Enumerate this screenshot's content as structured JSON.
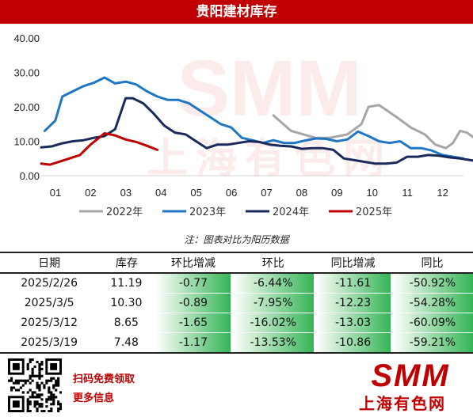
{
  "title": "贵阳建材库存",
  "watermark": {
    "logo": "SMM",
    "cn": "上海有色网"
  },
  "note": "注：图表对比为阳历数据",
  "chart_data": {
    "type": "line",
    "x": [
      "01",
      "02",
      "03",
      "04",
      "05",
      "06",
      "07",
      "08",
      "09",
      "10",
      "11",
      "12"
    ],
    "ylim": [
      0,
      40
    ],
    "yticks": [
      "0.00",
      "10.00",
      "20.00",
      "30.00",
      "40.00"
    ],
    "grid": false,
    "legend": "bottom",
    "series": [
      {
        "name": "2022年",
        "color": "#a6a6a6",
        "values": [
          [
            6.6,
            17.5
          ],
          [
            7.1,
            13
          ],
          [
            7.8,
            11
          ],
          [
            8.2,
            11
          ],
          [
            8.7,
            12
          ],
          [
            9.1,
            15
          ],
          [
            9.3,
            20
          ],
          [
            9.6,
            20.5
          ],
          [
            10.1,
            17
          ],
          [
            10.5,
            14
          ],
          [
            10.9,
            12
          ],
          [
            11.2,
            9
          ],
          [
            11.5,
            8
          ],
          [
            11.7,
            9.5
          ],
          [
            11.9,
            13
          ],
          [
            12.1,
            12.5
          ],
          [
            12.3,
            11
          ],
          [
            12.5,
            13
          ]
        ]
      },
      {
        "name": "2023年",
        "color": "#1f77c4",
        "values": [
          [
            0.1,
            13
          ],
          [
            0.4,
            16
          ],
          [
            0.6,
            23
          ],
          [
            0.9,
            24.5
          ],
          [
            1.2,
            26
          ],
          [
            1.5,
            27
          ],
          [
            1.8,
            28.5
          ],
          [
            2.1,
            26.8
          ],
          [
            2.4,
            27.3
          ],
          [
            2.7,
            26.5
          ],
          [
            3.0,
            24.5
          ],
          [
            3.3,
            23
          ],
          [
            3.6,
            22
          ],
          [
            3.9,
            22
          ],
          [
            4.2,
            21
          ],
          [
            4.5,
            19
          ],
          [
            4.8,
            17
          ],
          [
            5.1,
            15
          ],
          [
            5.4,
            14
          ],
          [
            5.7,
            11
          ],
          [
            6.0,
            10.3
          ],
          [
            6.3,
            9.5
          ],
          [
            6.6,
            10.3
          ],
          [
            6.9,
            9.5
          ],
          [
            7.2,
            9.5
          ],
          [
            7.5,
            10.2
          ],
          [
            7.8,
            10.8
          ],
          [
            8.1,
            10.7
          ],
          [
            8.4,
            10
          ],
          [
            8.7,
            10.5
          ],
          [
            9.0,
            12.8
          ],
          [
            9.3,
            11.5
          ],
          [
            9.6,
            10
          ],
          [
            9.9,
            9.5
          ],
          [
            10.2,
            10
          ],
          [
            10.5,
            8
          ],
          [
            10.8,
            8
          ],
          [
            11.1,
            7.3
          ],
          [
            11.4,
            6
          ],
          [
            11.7,
            5.5
          ],
          [
            12.0,
            5
          ]
        ]
      },
      {
        "name": "2024年",
        "color": "#1a2a5c",
        "values": [
          [
            0.0,
            8.2
          ],
          [
            0.3,
            8.5
          ],
          [
            0.6,
            9.4
          ],
          [
            0.9,
            10
          ],
          [
            1.2,
            10.3
          ],
          [
            1.5,
            11
          ],
          [
            1.8,
            11.5
          ],
          [
            2.1,
            13.5
          ],
          [
            2.4,
            22.5
          ],
          [
            2.6,
            22.5
          ],
          [
            2.9,
            21
          ],
          [
            3.2,
            18
          ],
          [
            3.5,
            14.5
          ],
          [
            3.8,
            12.5
          ],
          [
            4.1,
            12
          ],
          [
            4.4,
            10
          ],
          [
            4.7,
            8
          ],
          [
            5.0,
            9
          ],
          [
            5.3,
            9
          ],
          [
            5.6,
            9.5
          ],
          [
            5.9,
            10
          ],
          [
            6.2,
            9.8
          ],
          [
            6.5,
            9
          ],
          [
            6.8,
            8.7
          ],
          [
            7.1,
            8.5
          ],
          [
            7.4,
            7.8
          ],
          [
            7.7,
            8
          ],
          [
            8.0,
            8
          ],
          [
            8.3,
            7.5
          ],
          [
            8.6,
            5
          ],
          [
            8.9,
            4.5
          ],
          [
            9.2,
            4
          ],
          [
            9.5,
            3.5
          ],
          [
            9.8,
            3.5
          ],
          [
            10.1,
            3.8
          ],
          [
            10.4,
            5.5
          ],
          [
            10.7,
            5.5
          ],
          [
            11.0,
            6
          ],
          [
            11.3,
            5.8
          ],
          [
            11.6,
            5.3
          ],
          [
            11.9,
            5
          ],
          [
            12.2,
            4.5
          ],
          [
            12.5,
            4
          ],
          [
            12.8,
            3.5
          ]
        ]
      },
      {
        "name": "2025年",
        "color": "#c00000",
        "values": [
          [
            0.0,
            3.5
          ],
          [
            0.25,
            3.2
          ],
          [
            0.5,
            4
          ],
          [
            0.8,
            5
          ],
          [
            1.1,
            6
          ],
          [
            1.4,
            9
          ],
          [
            1.8,
            12.3
          ],
          [
            2.1,
            11.7
          ],
          [
            2.4,
            10.5
          ],
          [
            2.7,
            9.8
          ],
          [
            3.0,
            8.7
          ],
          [
            3.3,
            7.5
          ]
        ]
      }
    ]
  },
  "table": {
    "headers": [
      "日期",
      "库存",
      "环比增减",
      "环比",
      "同比增减",
      "同比"
    ],
    "rows": [
      [
        "2025/2/26",
        "11.19",
        "-0.77",
        "-6.44%",
        "-11.61",
        "-50.92%"
      ],
      [
        "2025/3/5",
        "10.30",
        "-0.89",
        "-7.95%",
        "-12.23",
        "-54.28%"
      ],
      [
        "2025/3/12",
        "8.65",
        "-1.65",
        "-16.02%",
        "-13.03",
        "-60.09%"
      ],
      [
        "2025/3/19",
        "7.48",
        "-1.17",
        "-13.53%",
        "-10.86",
        "-59.21%"
      ]
    ]
  },
  "footer": {
    "promo_line1": "扫码免费领取",
    "promo_line2": "更多信息",
    "logo": "SMM",
    "logo_cn": "上海有色网"
  }
}
